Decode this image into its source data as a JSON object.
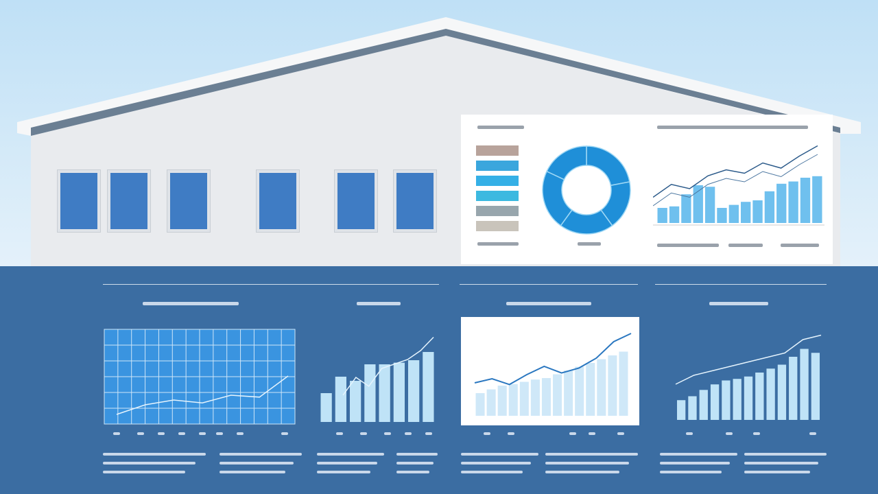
{
  "colors": {
    "sky": "#bfe0f6",
    "wall": "#e9ebee",
    "roof": "#6b7f93",
    "window": "#3f7cc4",
    "ground": "#3b6da2",
    "accent": "#2a95dc",
    "bar_light": "#bfe3f7"
  },
  "panel": {
    "legend_swatches": [
      "#b8a39b",
      "#3aa6dd",
      "#35b0e6",
      "#3cb9e0",
      "#98a6ad",
      "#c9c4bb"
    ],
    "donut_slices": [
      22,
      18,
      20,
      22,
      18
    ],
    "combo_bars": [
      20,
      22,
      38,
      50,
      48,
      20,
      24,
      28,
      30,
      42,
      52,
      55,
      60,
      62
    ],
    "combo_line": [
      30,
      45,
      40,
      55,
      62,
      58,
      70,
      64,
      78,
      90
    ]
  },
  "charts": [
    {
      "type": "grid-line",
      "line": [
        10,
        20,
        25,
        22,
        30,
        28,
        50
      ]
    },
    {
      "type": "bar",
      "bars": [
        35,
        55,
        50,
        70,
        70,
        72,
        75,
        85
      ],
      "line": [
        30,
        50,
        40,
        60,
        65,
        70,
        80,
        95
      ]
    },
    {
      "type": "area",
      "line": [
        40,
        45,
        38,
        50,
        60,
        52,
        58,
        70,
        90,
        100
      ],
      "bars": [
        30,
        35,
        40,
        42,
        45,
        48,
        50,
        55,
        60,
        65,
        70,
        75,
        80,
        85
      ]
    },
    {
      "type": "bar",
      "bars": [
        25,
        30,
        38,
        45,
        50,
        52,
        55,
        60,
        65,
        70,
        80,
        90,
        85
      ],
      "line": [
        40,
        50,
        55,
        60,
        65,
        70,
        75,
        90,
        95
      ]
    }
  ]
}
